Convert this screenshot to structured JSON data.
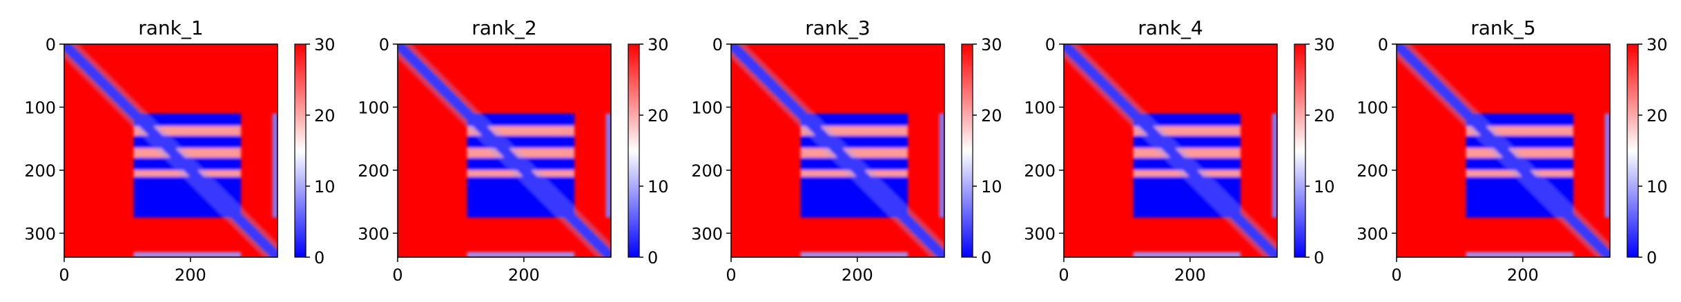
{
  "chart_data": {
    "type": "heatmap",
    "colormap": "bwr",
    "colors": {
      "low": "#0000ff",
      "mid": "#ffffff",
      "high": "#ff0000"
    },
    "color_range": [
      0,
      30
    ],
    "colorbar_ticks": [
      0,
      10,
      20,
      30
    ],
    "x_ticks": [
      0,
      200
    ],
    "y_ticks": [
      0,
      100,
      200,
      300
    ],
    "xlim": [
      0,
      338
    ],
    "ylim": [
      338,
      0
    ],
    "grid": false,
    "description_of_structure": {
      "n_residues": 338,
      "low_error_blocks": [
        [
          110,
          130
        ],
        [
          145,
          165
        ],
        [
          180,
          200
        ],
        [
          210,
          275
        ]
      ],
      "block_column_range": [
        110,
        280
      ],
      "diagonal_band_width": 8,
      "edge_strip": [
        330,
        338
      ]
    },
    "panels": [
      {
        "title": "rank_1"
      },
      {
        "title": "rank_2"
      },
      {
        "title": "rank_3"
      },
      {
        "title": "rank_4"
      },
      {
        "title": "rank_5"
      }
    ]
  }
}
